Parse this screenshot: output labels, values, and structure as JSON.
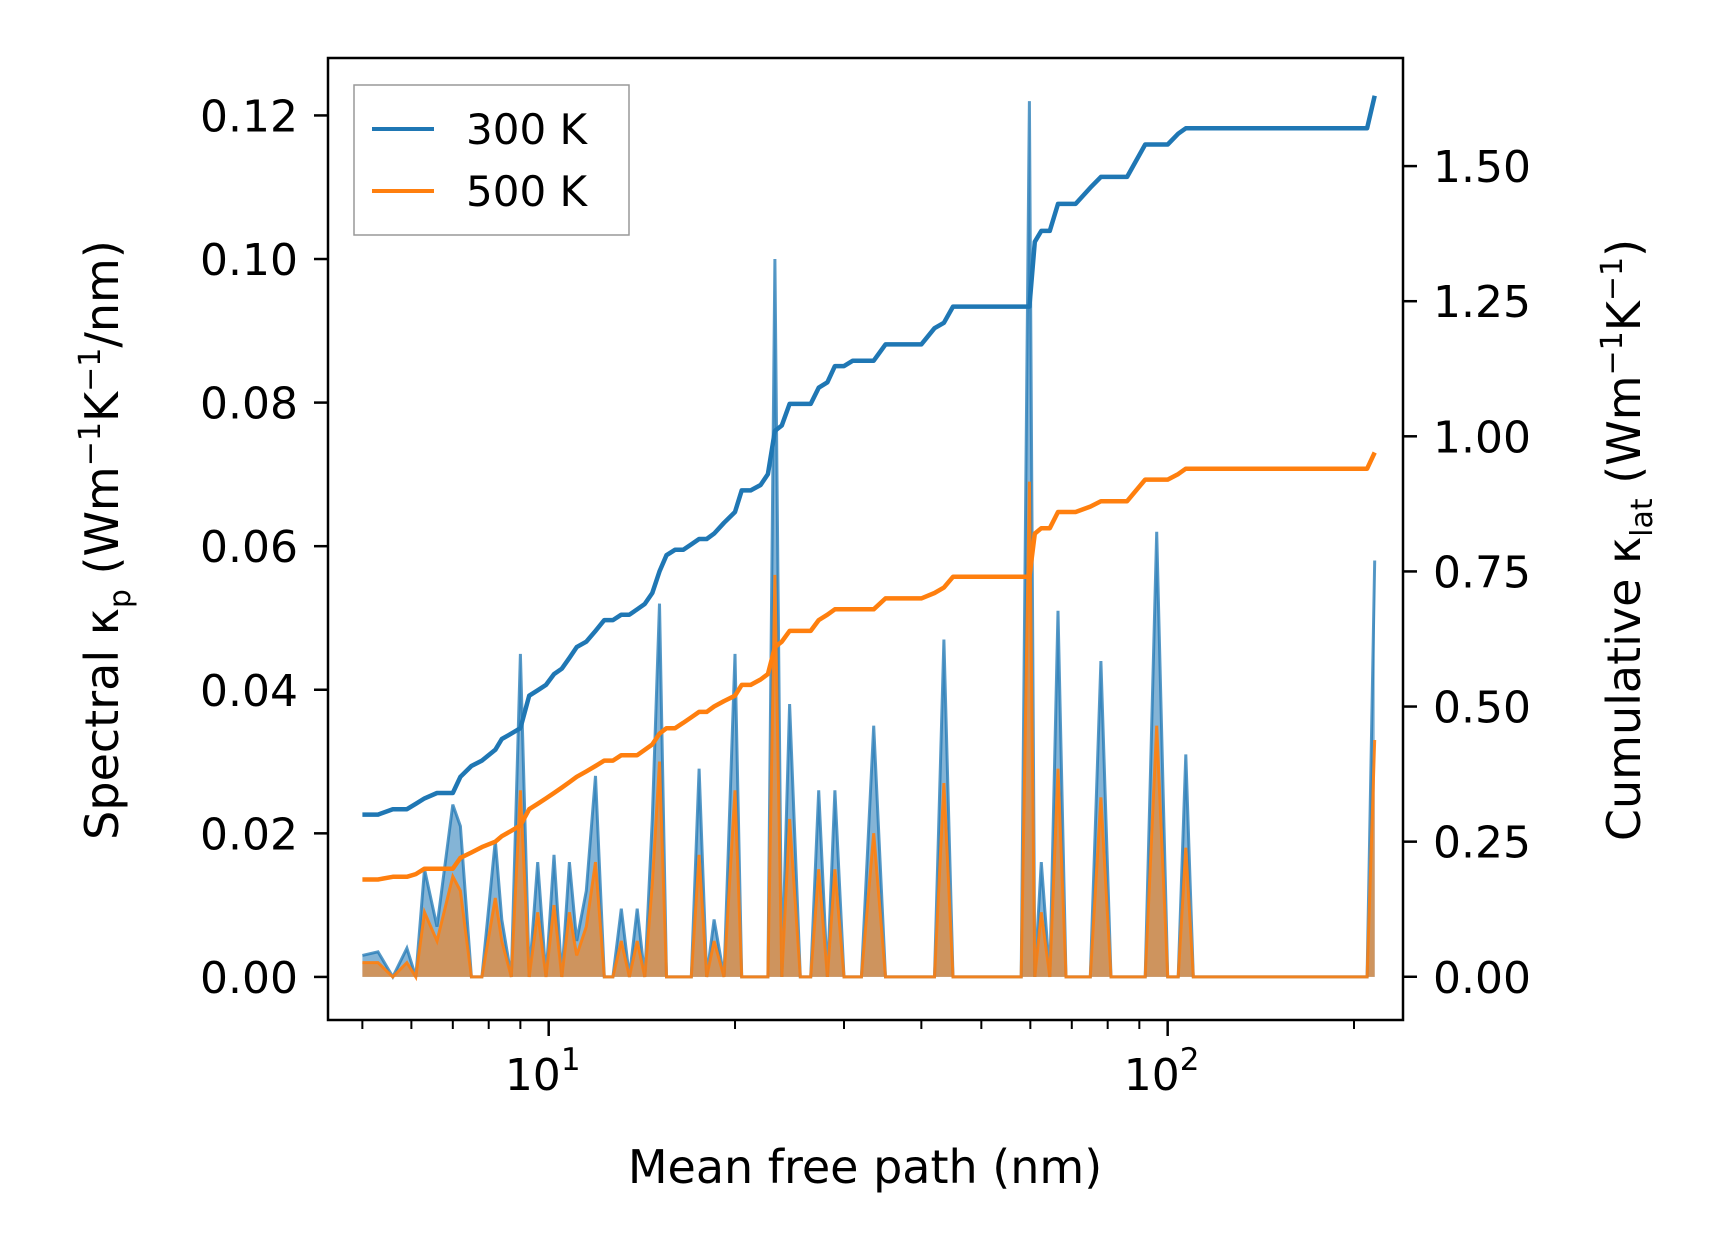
{
  "chart_data": {
    "type": "line",
    "xscale": "log",
    "xlabel": "Mean free path (nm)",
    "ylabel": "Spectral κp (Wm−1K−1/nm)",
    "ylabel_parts": {
      "pre": "Spectral κ",
      "sub": "p",
      "mid1": " (Wm",
      "sup1": "−1",
      "mid2": "K",
      "sup2": "−1",
      "post": "/nm)"
    },
    "y2label": "Cumulative κlat (Wm−1K−1)",
    "y2label_parts": {
      "pre": "Cumulative κ",
      "sub": "lat",
      "mid1": " (Wm",
      "sup1": "−1",
      "mid2": "K",
      "sup2": "−1",
      "post": ")"
    },
    "xlim": [
      4.4,
      240
    ],
    "ylim": [
      -0.006,
      0.128
    ],
    "y2lim": [
      -0.08,
      1.7
    ],
    "x_ticks": [
      {
        "value": 10,
        "base": "10",
        "exp": "1"
      },
      {
        "value": 100,
        "base": "10",
        "exp": "2"
      }
    ],
    "y_ticks": [
      0.0,
      0.02,
      0.04,
      0.06,
      0.08,
      0.1,
      0.12
    ],
    "y_tick_labels": [
      "0.00",
      "0.02",
      "0.04",
      "0.06",
      "0.08",
      "0.10",
      "0.12"
    ],
    "y2_ticks": [
      0.0,
      0.25,
      0.5,
      0.75,
      1.0,
      1.25,
      1.5
    ],
    "y2_tick_labels": [
      "0.00",
      "0.25",
      "0.50",
      "0.75",
      "1.00",
      "1.25",
      "1.50"
    ],
    "legend": {
      "position": "top-left",
      "entries": [
        "300 K",
        "500 K"
      ]
    },
    "colors": {
      "s300": "#1f77b4",
      "s500": "#ff7f0e",
      "fill300": "#1f77b4",
      "fill500": "#ff7f0e"
    },
    "series": [
      {
        "name": "300 K",
        "spectral": {
          "x": [
            5.0,
            5.3,
            5.6,
            5.9,
            6.1,
            6.3,
            6.6,
            7.0,
            7.2,
            7.5,
            7.8,
            8.2,
            8.4,
            8.7,
            9.0,
            9.3,
            9.6,
            9.9,
            10.2,
            10.5,
            10.8,
            11.1,
            11.5,
            11.9,
            12.3,
            12.7,
            13.1,
            13.5,
            13.9,
            14.3,
            14.7,
            15.1,
            15.5,
            16.0,
            16.5,
            17.0,
            17.5,
            18.0,
            18.5,
            19.2,
            20.0,
            20.5,
            21.2,
            22.0,
            22.6,
            23.2,
            23.8,
            24.5,
            25.5,
            26.5,
            27.3,
            28.2,
            29.0,
            30.0,
            31.0,
            32.0,
            33.5,
            35.0,
            36.5,
            38.0,
            40.0,
            42.0,
            43.5,
            45.0,
            47.0,
            50.0,
            55.0,
            58.0,
            59.8,
            61.0,
            62.5,
            64.5,
            66.5,
            68.5,
            71.0,
            75.0,
            78.0,
            81.0,
            86.0,
            92.0,
            96.0,
            100.0,
            104.0,
            107.0,
            110.0,
            150.0,
            200.0,
            210.0,
            216.0
          ],
          "y": [
            0.003,
            0.0035,
            0.0,
            0.004,
            0.0,
            0.015,
            0.007,
            0.024,
            0.021,
            0.0,
            0.0,
            0.019,
            0.008,
            0.0,
            0.045,
            0.0,
            0.016,
            0.0,
            0.017,
            0.0,
            0.016,
            0.005,
            0.012,
            0.028,
            0.0,
            0.0,
            0.0095,
            0.0,
            0.0095,
            0.0,
            0.022,
            0.052,
            0.0,
            0.0,
            0.0,
            0.0,
            0.029,
            0.0,
            0.008,
            0.0,
            0.045,
            0.0,
            0.0,
            0.0,
            0.0,
            0.1,
            0.0,
            0.038,
            0.0,
            0.0,
            0.026,
            0.0,
            0.026,
            0.0,
            0.0,
            0.0,
            0.035,
            0.0,
            0.0,
            0.0,
            0.0,
            0.0,
            0.047,
            0.0,
            0.0,
            0.0,
            0.0,
            0.0,
            0.122,
            0.0,
            0.016,
            0.0,
            0.051,
            0.0,
            0.0,
            0.0,
            0.044,
            0.0,
            0.0,
            0.0,
            0.062,
            0.0,
            0.0,
            0.031,
            0.0,
            0.0,
            0.0,
            0.0,
            0.058
          ]
        },
        "cumulative": {
          "x": [
            5.0,
            5.3,
            5.6,
            5.9,
            6.1,
            6.3,
            6.6,
            7.0,
            7.2,
            7.5,
            7.8,
            8.2,
            8.4,
            8.7,
            9.0,
            9.3,
            9.6,
            9.9,
            10.2,
            10.5,
            10.8,
            11.1,
            11.5,
            11.9,
            12.3,
            12.7,
            13.1,
            13.5,
            13.9,
            14.3,
            14.7,
            15.1,
            15.5,
            16.0,
            16.5,
            17.0,
            17.5,
            18.0,
            18.5,
            19.2,
            20.0,
            20.5,
            21.2,
            22.0,
            22.6,
            23.2,
            23.8,
            24.5,
            25.5,
            26.5,
            27.3,
            28.2,
            29.0,
            30.0,
            31.0,
            32.0,
            33.5,
            35.0,
            36.5,
            38.0,
            40.0,
            42.0,
            43.5,
            45.0,
            47.0,
            50.0,
            55.0,
            58.0,
            59.8,
            61.0,
            62.5,
            64.5,
            66.5,
            68.5,
            71.0,
            75.0,
            78.0,
            81.0,
            86.0,
            92.0,
            96.0,
            100.0,
            104.0,
            107.0,
            110.0,
            150.0,
            200.0,
            210.0,
            216.0
          ],
          "y": [
            0.3,
            0.3,
            0.31,
            0.31,
            0.32,
            0.33,
            0.34,
            0.34,
            0.37,
            0.39,
            0.4,
            0.42,
            0.44,
            0.45,
            0.46,
            0.52,
            0.53,
            0.54,
            0.56,
            0.57,
            0.59,
            0.61,
            0.62,
            0.64,
            0.66,
            0.66,
            0.67,
            0.67,
            0.68,
            0.69,
            0.71,
            0.75,
            0.78,
            0.79,
            0.79,
            0.8,
            0.81,
            0.81,
            0.82,
            0.84,
            0.86,
            0.9,
            0.9,
            0.91,
            0.93,
            1.01,
            1.02,
            1.06,
            1.06,
            1.06,
            1.09,
            1.1,
            1.13,
            1.13,
            1.14,
            1.14,
            1.14,
            1.17,
            1.17,
            1.17,
            1.17,
            1.2,
            1.21,
            1.24,
            1.24,
            1.24,
            1.24,
            1.24,
            1.24,
            1.36,
            1.38,
            1.38,
            1.43,
            1.43,
            1.43,
            1.46,
            1.48,
            1.48,
            1.48,
            1.54,
            1.54,
            1.54,
            1.56,
            1.57,
            1.57,
            1.57,
            1.57,
            1.57,
            1.63
          ]
        }
      },
      {
        "name": "500 K",
        "spectral": {
          "x": [
            5.0,
            5.3,
            5.6,
            5.9,
            6.1,
            6.3,
            6.6,
            7.0,
            7.2,
            7.5,
            7.8,
            8.2,
            8.4,
            8.7,
            9.0,
            9.3,
            9.6,
            9.9,
            10.2,
            10.5,
            10.8,
            11.1,
            11.5,
            11.9,
            12.3,
            12.7,
            13.1,
            13.5,
            13.9,
            14.3,
            14.7,
            15.1,
            15.5,
            16.0,
            16.5,
            17.0,
            17.5,
            18.0,
            18.5,
            19.2,
            20.0,
            20.5,
            21.2,
            22.0,
            22.6,
            23.2,
            23.8,
            24.5,
            25.5,
            26.5,
            27.3,
            28.2,
            29.0,
            30.0,
            31.0,
            32.0,
            33.5,
            35.0,
            36.5,
            38.0,
            40.0,
            42.0,
            43.5,
            45.0,
            47.0,
            50.0,
            55.0,
            58.0,
            59.8,
            61.0,
            62.5,
            64.5,
            66.5,
            68.5,
            71.0,
            75.0,
            78.0,
            81.0,
            86.0,
            92.0,
            96.0,
            100.0,
            104.0,
            107.0,
            110.0,
            150.0,
            200.0,
            210.0,
            216.0
          ],
          "y": [
            0.002,
            0.002,
            0.0,
            0.002,
            0.0,
            0.009,
            0.005,
            0.014,
            0.012,
            0.0,
            0.0,
            0.011,
            0.005,
            0.0,
            0.026,
            0.0,
            0.009,
            0.0,
            0.01,
            0.0,
            0.009,
            0.003,
            0.007,
            0.016,
            0.0,
            0.0,
            0.005,
            0.0,
            0.005,
            0.0,
            0.013,
            0.03,
            0.0,
            0.0,
            0.0,
            0.0,
            0.017,
            0.0,
            0.005,
            0.0,
            0.026,
            0.0,
            0.0,
            0.0,
            0.0,
            0.056,
            0.0,
            0.022,
            0.0,
            0.0,
            0.015,
            0.0,
            0.015,
            0.0,
            0.0,
            0.0,
            0.02,
            0.0,
            0.0,
            0.0,
            0.0,
            0.0,
            0.027,
            0.0,
            0.0,
            0.0,
            0.0,
            0.0,
            0.069,
            0.0,
            0.009,
            0.0,
            0.029,
            0.0,
            0.0,
            0.0,
            0.025,
            0.0,
            0.0,
            0.0,
            0.035,
            0.0,
            0.0,
            0.018,
            0.0,
            0.0,
            0.0,
            0.0,
            0.033
          ]
        },
        "cumulative": {
          "x": [
            5.0,
            5.3,
            5.6,
            5.9,
            6.1,
            6.3,
            6.6,
            7.0,
            7.2,
            7.5,
            7.8,
            8.2,
            8.4,
            8.7,
            9.0,
            9.3,
            9.6,
            9.9,
            10.2,
            10.5,
            10.8,
            11.1,
            11.5,
            11.9,
            12.3,
            12.7,
            13.1,
            13.5,
            13.9,
            14.3,
            14.7,
            15.1,
            15.5,
            16.0,
            16.5,
            17.0,
            17.5,
            18.0,
            18.5,
            19.2,
            20.0,
            20.5,
            21.2,
            22.0,
            22.6,
            23.2,
            23.8,
            24.5,
            25.5,
            26.5,
            27.3,
            28.2,
            29.0,
            30.0,
            31.0,
            32.0,
            33.5,
            35.0,
            36.5,
            38.0,
            40.0,
            42.0,
            43.5,
            45.0,
            47.0,
            50.0,
            55.0,
            58.0,
            59.8,
            61.0,
            62.5,
            64.5,
            66.5,
            68.5,
            71.0,
            75.0,
            78.0,
            81.0,
            86.0,
            92.0,
            96.0,
            100.0,
            104.0,
            107.0,
            110.0,
            150.0,
            200.0,
            210.0,
            216.0
          ],
          "y": [
            0.18,
            0.18,
            0.185,
            0.185,
            0.19,
            0.2,
            0.2,
            0.2,
            0.22,
            0.23,
            0.24,
            0.25,
            0.26,
            0.27,
            0.28,
            0.31,
            0.32,
            0.33,
            0.34,
            0.35,
            0.36,
            0.37,
            0.38,
            0.39,
            0.4,
            0.4,
            0.41,
            0.41,
            0.41,
            0.42,
            0.43,
            0.45,
            0.46,
            0.46,
            0.47,
            0.48,
            0.49,
            0.49,
            0.5,
            0.51,
            0.52,
            0.54,
            0.54,
            0.55,
            0.56,
            0.61,
            0.62,
            0.64,
            0.64,
            0.64,
            0.66,
            0.67,
            0.68,
            0.68,
            0.68,
            0.68,
            0.68,
            0.7,
            0.7,
            0.7,
            0.7,
            0.71,
            0.72,
            0.74,
            0.74,
            0.74,
            0.74,
            0.74,
            0.74,
            0.82,
            0.83,
            0.83,
            0.86,
            0.86,
            0.86,
            0.87,
            0.88,
            0.88,
            0.88,
            0.92,
            0.92,
            0.92,
            0.93,
            0.94,
            0.94,
            0.94,
            0.94,
            0.94,
            0.97
          ]
        }
      }
    ]
  }
}
